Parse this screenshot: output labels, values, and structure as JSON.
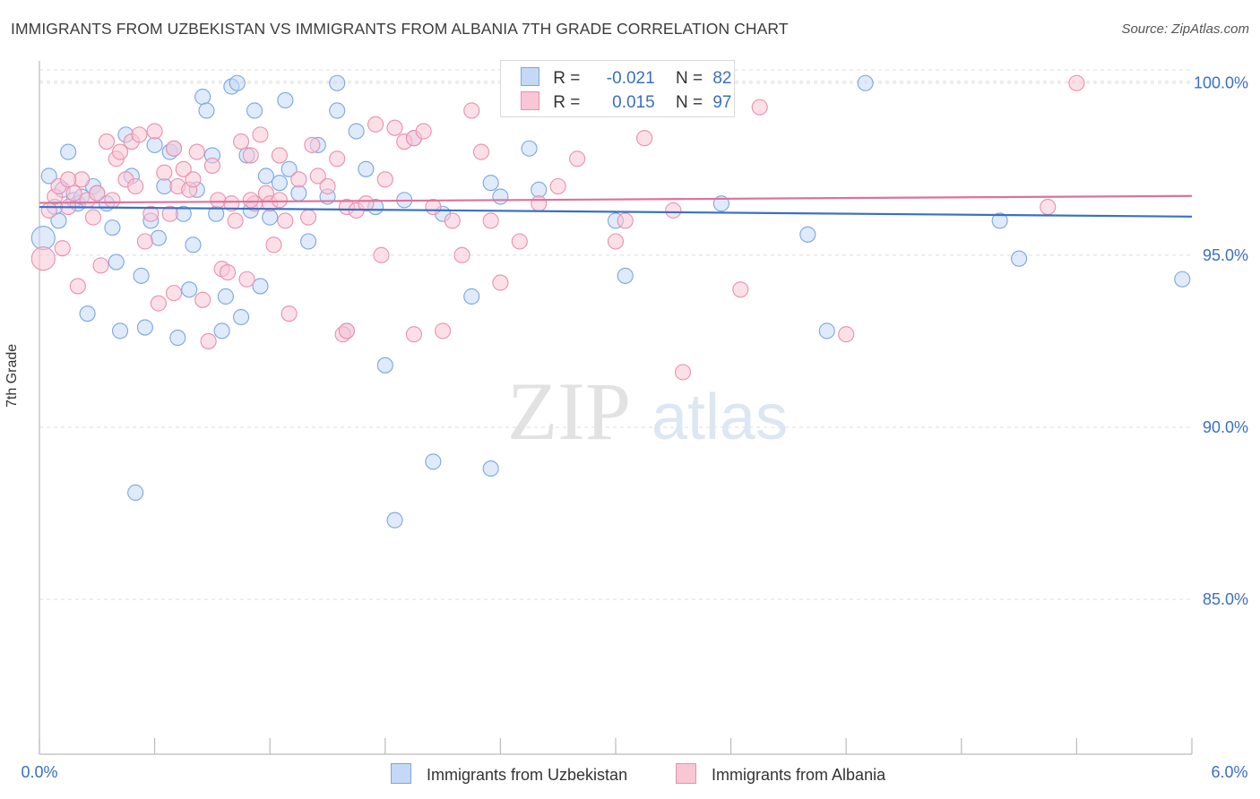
{
  "title": "IMMIGRANTS FROM UZBEKISTAN VS IMMIGRANTS FROM ALBANIA 7TH GRADE CORRELATION CHART",
  "source": "Source: ZipAtlas.com",
  "watermark": {
    "zip": "ZIP",
    "atlas": "atlas"
  },
  "legend": {
    "row1": {
      "r_label": "R =",
      "r_value": "-0.021",
      "n_label": "N =",
      "n_value": "82"
    },
    "row2": {
      "r_label": "R =",
      "r_value": "0.015",
      "n_label": "N =",
      "n_value": "97"
    }
  },
  "colors": {
    "blue_fill": "#c5d8f5",
    "blue_stroke": "#7aa6e0",
    "blue_line": "#3a6fc4",
    "pink_fill": "#f9c6d6",
    "pink_stroke": "#ea8fad",
    "pink_line": "#e0709a",
    "axis_text": "#3a6fc4",
    "grid": "#dddddd"
  },
  "chart_data": {
    "type": "scatter",
    "xlabel": "",
    "ylabel": "7th Grade",
    "xlim": [
      0,
      6
    ],
    "ylim": [
      80.5,
      100.8
    ],
    "x_tick_labels": [
      "0.0%",
      "6.0%"
    ],
    "y_ticks": [
      85,
      90,
      95,
      100
    ],
    "y_tick_labels": [
      "85.0%",
      "90.0%",
      "95.0%",
      "100.0%"
    ],
    "grid": true,
    "series": [
      {
        "name": "Immigrants from Uzbekistan",
        "color": "#7aa6e0",
        "trend": {
          "y_at_x0": 96.4,
          "y_at_xmax": 96.12
        },
        "points": [
          [
            0.02,
            95.5
          ],
          [
            0.05,
            97.3
          ],
          [
            0.08,
            96.4
          ],
          [
            0.1,
            96.0
          ],
          [
            0.12,
            96.9
          ],
          [
            0.15,
            98.0
          ],
          [
            0.18,
            96.6
          ],
          [
            0.2,
            96.5
          ],
          [
            0.22,
            96.7
          ],
          [
            0.25,
            93.3
          ],
          [
            0.28,
            97.0
          ],
          [
            0.3,
            96.8
          ],
          [
            0.35,
            96.5
          ],
          [
            0.38,
            95.8
          ],
          [
            0.42,
            92.8
          ],
          [
            0.45,
            98.5
          ],
          [
            0.48,
            97.3
          ],
          [
            0.5,
            88.1
          ],
          [
            0.53,
            94.4
          ],
          [
            0.55,
            92.9
          ],
          [
            0.58,
            96.0
          ],
          [
            0.6,
            98.2
          ],
          [
            0.62,
            95.5
          ],
          [
            0.65,
            97.0
          ],
          [
            0.68,
            98.0
          ],
          [
            0.7,
            98.1
          ],
          [
            0.72,
            92.6
          ],
          [
            0.75,
            96.2
          ],
          [
            0.78,
            94.0
          ],
          [
            0.8,
            95.3
          ],
          [
            0.82,
            96.9
          ],
          [
            0.85,
            99.6
          ],
          [
            0.87,
            99.2
          ],
          [
            0.9,
            97.9
          ],
          [
            0.92,
            96.2
          ],
          [
            0.95,
            92.8
          ],
          [
            0.97,
            93.8
          ],
          [
            1.0,
            99.9
          ],
          [
            1.03,
            100.0
          ],
          [
            1.05,
            93.2
          ],
          [
            1.08,
            97.9
          ],
          [
            1.1,
            96.3
          ],
          [
            1.12,
            99.2
          ],
          [
            1.15,
            94.1
          ],
          [
            1.18,
            97.3
          ],
          [
            1.2,
            96.1
          ],
          [
            1.25,
            97.1
          ],
          [
            1.28,
            99.5
          ],
          [
            1.3,
            97.5
          ],
          [
            1.35,
            96.8
          ],
          [
            1.4,
            95.4
          ],
          [
            1.45,
            98.2
          ],
          [
            1.5,
            96.7
          ],
          [
            1.55,
            100.0
          ],
          [
            1.6,
            92.8
          ],
          [
            1.65,
            98.6
          ],
          [
            1.7,
            97.5
          ],
          [
            1.75,
            96.4
          ],
          [
            1.8,
            91.8
          ],
          [
            1.85,
            87.3
          ],
          [
            1.9,
            96.6
          ],
          [
            1.95,
            98.4
          ],
          [
            2.05,
            89.0
          ],
          [
            2.1,
            96.2
          ],
          [
            2.25,
            93.8
          ],
          [
            2.35,
            88.8
          ],
          [
            2.35,
            97.1
          ],
          [
            2.4,
            96.7
          ],
          [
            2.55,
            98.1
          ],
          [
            2.6,
            96.9
          ],
          [
            2.65,
            99.5
          ],
          [
            3.0,
            96.0
          ],
          [
            3.05,
            94.4
          ],
          [
            3.55,
            96.5
          ],
          [
            4.0,
            95.6
          ],
          [
            4.1,
            92.8
          ],
          [
            4.3,
            100.0
          ],
          [
            5.0,
            96.0
          ],
          [
            5.1,
            94.9
          ],
          [
            5.95,
            94.3
          ],
          [
            0.4,
            94.8
          ],
          [
            1.55,
            99.2
          ]
        ]
      },
      {
        "name": "Immigrants from Albania",
        "color": "#ea8fad",
        "trend": {
          "y_at_x0": 96.52,
          "y_at_xmax": 96.72
        },
        "points": [
          [
            0.02,
            94.9
          ],
          [
            0.05,
            96.3
          ],
          [
            0.08,
            96.7
          ],
          [
            0.1,
            97.0
          ],
          [
            0.12,
            95.2
          ],
          [
            0.15,
            96.4
          ],
          [
            0.18,
            96.8
          ],
          [
            0.2,
            94.1
          ],
          [
            0.22,
            97.2
          ],
          [
            0.25,
            96.6
          ],
          [
            0.28,
            96.1
          ],
          [
            0.3,
            96.8
          ],
          [
            0.35,
            98.3
          ],
          [
            0.38,
            96.6
          ],
          [
            0.4,
            97.8
          ],
          [
            0.42,
            98.0
          ],
          [
            0.45,
            97.2
          ],
          [
            0.48,
            98.3
          ],
          [
            0.5,
            97.0
          ],
          [
            0.55,
            95.4
          ],
          [
            0.58,
            96.2
          ],
          [
            0.6,
            98.6
          ],
          [
            0.62,
            93.6
          ],
          [
            0.65,
            97.4
          ],
          [
            0.68,
            96.2
          ],
          [
            0.7,
            98.1
          ],
          [
            0.72,
            97.0
          ],
          [
            0.75,
            97.5
          ],
          [
            0.78,
            96.9
          ],
          [
            0.8,
            97.2
          ],
          [
            0.82,
            98.0
          ],
          [
            0.85,
            93.7
          ],
          [
            0.88,
            92.5
          ],
          [
            0.9,
            97.6
          ],
          [
            0.93,
            96.6
          ],
          [
            0.95,
            94.6
          ],
          [
            0.98,
            94.5
          ],
          [
            1.0,
            96.5
          ],
          [
            1.02,
            96.0
          ],
          [
            1.05,
            98.3
          ],
          [
            1.08,
            94.3
          ],
          [
            1.1,
            97.9
          ],
          [
            1.12,
            96.5
          ],
          [
            1.15,
            98.5
          ],
          [
            1.18,
            96.8
          ],
          [
            1.2,
            96.5
          ],
          [
            1.22,
            95.3
          ],
          [
            1.25,
            97.9
          ],
          [
            1.28,
            96.0
          ],
          [
            1.3,
            93.3
          ],
          [
            1.35,
            97.2
          ],
          [
            1.4,
            96.1
          ],
          [
            1.42,
            98.2
          ],
          [
            1.45,
            97.3
          ],
          [
            1.5,
            97.0
          ],
          [
            1.55,
            97.8
          ],
          [
            1.58,
            92.7
          ],
          [
            1.6,
            96.4
          ],
          [
            1.65,
            96.3
          ],
          [
            1.7,
            96.5
          ],
          [
            1.75,
            98.8
          ],
          [
            1.78,
            95.0
          ],
          [
            1.8,
            97.2
          ],
          [
            1.85,
            98.7
          ],
          [
            1.9,
            98.3
          ],
          [
            1.95,
            98.4
          ],
          [
            2.0,
            98.6
          ],
          [
            2.05,
            96.4
          ],
          [
            2.15,
            96.0
          ],
          [
            2.2,
            95.0
          ],
          [
            2.25,
            99.2
          ],
          [
            2.3,
            98.0
          ],
          [
            2.35,
            96.0
          ],
          [
            2.4,
            94.2
          ],
          [
            2.5,
            95.4
          ],
          [
            2.6,
            96.5
          ],
          [
            2.8,
            97.8
          ],
          [
            3.0,
            95.4
          ],
          [
            3.05,
            96.0
          ],
          [
            3.15,
            98.4
          ],
          [
            3.3,
            96.3
          ],
          [
            3.35,
            91.6
          ],
          [
            3.65,
            94.0
          ],
          [
            3.75,
            99.3
          ],
          [
            4.2,
            92.7
          ],
          [
            5.25,
            96.4
          ],
          [
            5.4,
            100.0
          ],
          [
            1.1,
            96.6
          ],
          [
            0.32,
            94.7
          ],
          [
            0.7,
            93.9
          ],
          [
            1.25,
            96.6
          ],
          [
            2.1,
            92.8
          ],
          [
            1.6,
            92.8
          ],
          [
            0.15,
            97.2
          ],
          [
            0.52,
            98.5
          ],
          [
            2.7,
            97.0
          ],
          [
            1.95,
            92.7
          ]
        ]
      }
    ]
  }
}
